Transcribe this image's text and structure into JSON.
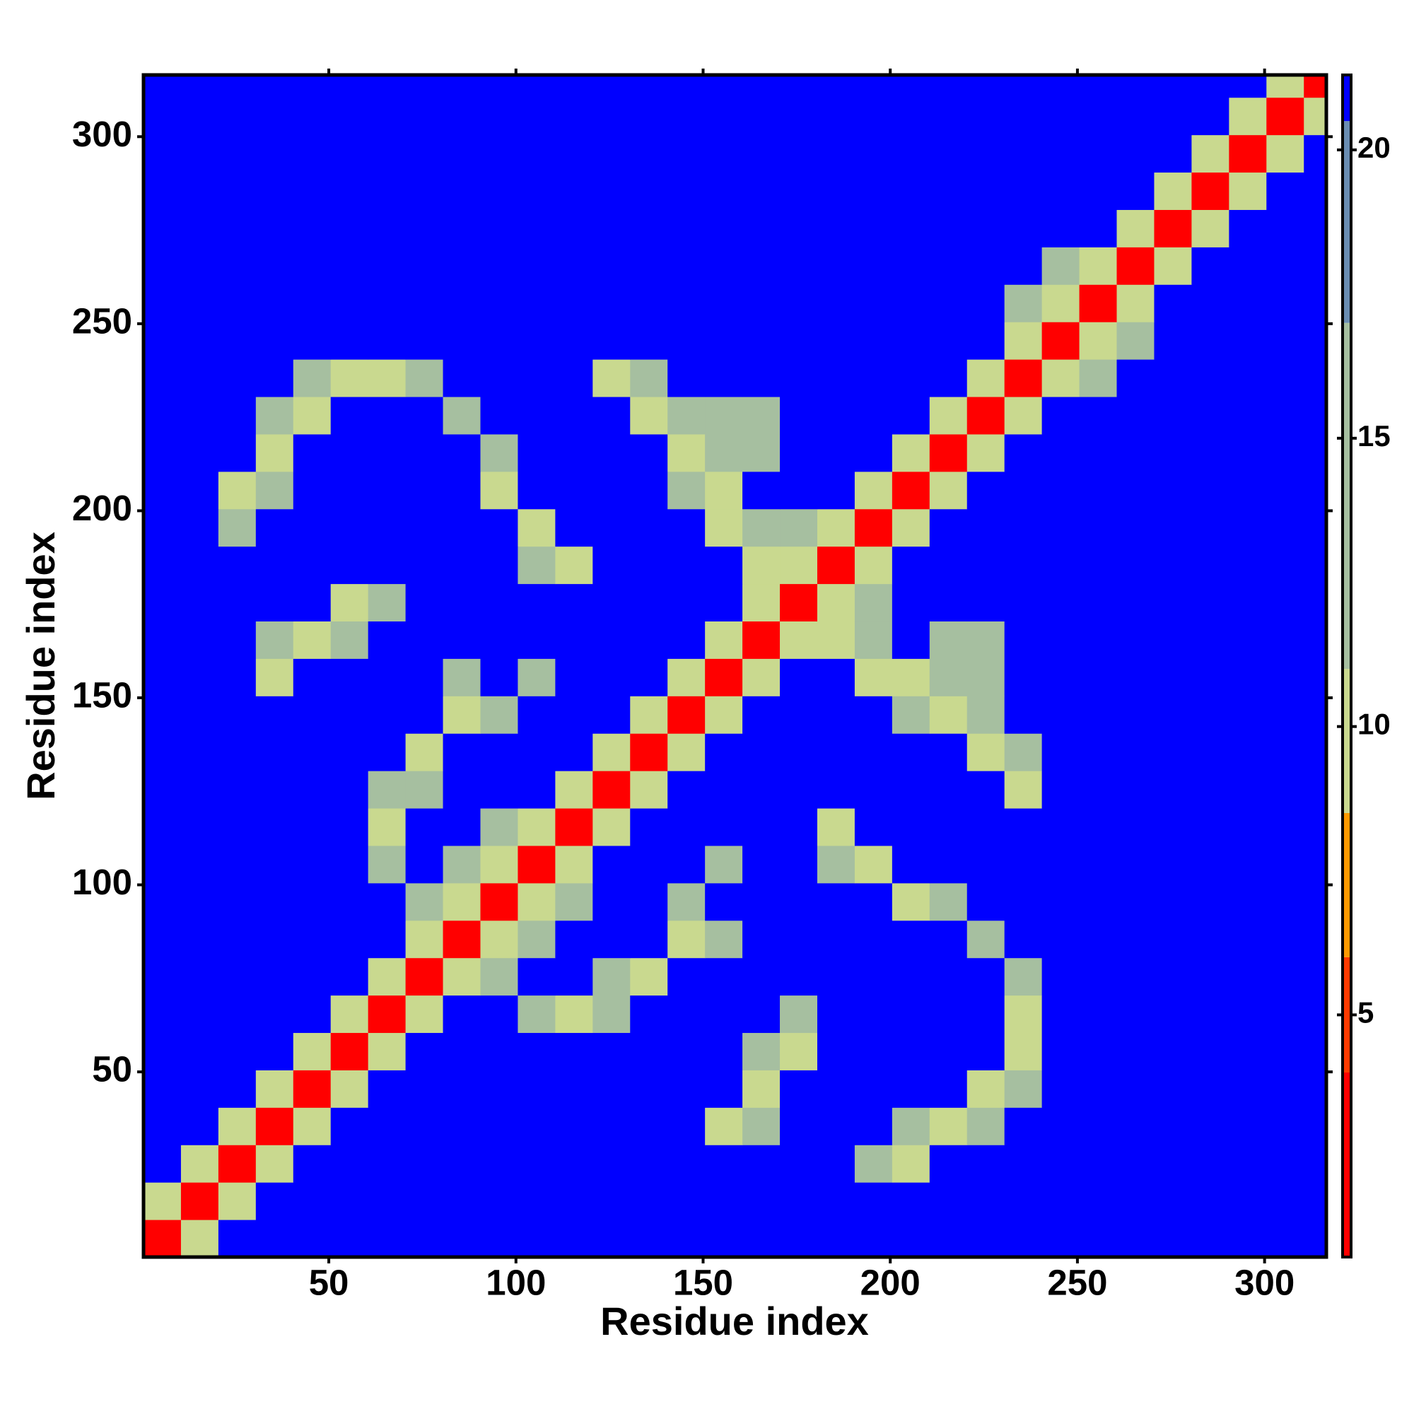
{
  "chart_data": {
    "type": "heatmap",
    "xlabel": "Residue index",
    "ylabel": "Residue index",
    "xlim": [
      0.5,
      316.5
    ],
    "ylim": [
      0.5,
      316.5
    ],
    "xticks": [
      50,
      100,
      150,
      200,
      250,
      300
    ],
    "yticks": [
      50,
      100,
      150,
      200,
      250,
      300
    ],
    "xbins": [
      0.5,
      10.5,
      20.5,
      30.5,
      40.5,
      50.5,
      60.5,
      70.5,
      80.5,
      90.5,
      100.5,
      110.5,
      120.5,
      130.5,
      140.5,
      150.5,
      160.5,
      170.5,
      180.5,
      190.5,
      200.5,
      210.5,
      220.5,
      230.5,
      240.5,
      250.5,
      260.5,
      270.5,
      280.5,
      290.5,
      300.5,
      310.5,
      316.5
    ],
    "ybins": [
      0.5,
      10.5,
      20.5,
      30.5,
      40.5,
      50.5,
      60.5,
      70.5,
      80.5,
      90.5,
      100.5,
      110.5,
      120.5,
      130.5,
      140.5,
      150.5,
      160.5,
      170.5,
      180.5,
      190.5,
      200.5,
      210.5,
      220.5,
      230.5,
      240.5,
      250.5,
      260.5,
      270.5,
      280.5,
      290.5,
      300.5,
      310.5,
      316.5
    ],
    "colorbar": {
      "lim": [
        0.8,
        21.3
      ],
      "ticks": [
        5,
        10,
        15,
        20
      ]
    },
    "colorscale": [
      {
        "value": 0.8,
        "color": "#ff0000"
      },
      {
        "value": 4,
        "color": "#ff3a00"
      },
      {
        "value": 6,
        "color": "#ff9a00"
      },
      {
        "value": 8.5,
        "color": "#c9d98f"
      },
      {
        "value": 11,
        "color": "#a6bfa0"
      },
      {
        "value": 17,
        "color": "#6a8db2"
      },
      {
        "value": 20.5,
        "color": "#0000ff"
      }
    ],
    "z": [
      [
        3,
        10,
        21,
        21,
        21,
        21,
        21,
        21,
        21,
        21,
        21,
        21,
        21,
        21,
        21,
        21,
        21,
        21,
        21,
        21,
        21,
        21,
        21,
        21,
        21,
        21,
        21,
        21,
        21,
        21,
        21,
        21
      ],
      [
        10,
        3,
        10,
        21,
        21,
        21,
        21,
        21,
        21,
        21,
        21,
        21,
        21,
        21,
        21,
        21,
        21,
        21,
        21,
        21,
        21,
        21,
        21,
        21,
        21,
        21,
        21,
        21,
        21,
        21,
        21,
        21
      ],
      [
        21,
        10,
        3,
        10,
        21,
        21,
        21,
        21,
        21,
        21,
        21,
        21,
        21,
        21,
        21,
        21,
        21,
        21,
        21,
        13,
        10,
        21,
        21,
        21,
        21,
        21,
        21,
        21,
        21,
        21,
        21,
        21
      ],
      [
        21,
        21,
        10,
        3,
        10,
        21,
        21,
        21,
        21,
        21,
        21,
        21,
        21,
        21,
        21,
        10,
        13,
        21,
        21,
        21,
        13,
        10,
        11,
        21,
        21,
        21,
        21,
        21,
        21,
        21,
        21,
        21
      ],
      [
        21,
        21,
        21,
        10,
        3,
        10,
        21,
        21,
        21,
        21,
        21,
        21,
        21,
        21,
        21,
        21,
        10,
        21,
        21,
        21,
        21,
        21,
        10,
        13,
        21,
        21,
        21,
        21,
        21,
        21,
        21,
        21
      ],
      [
        21,
        21,
        21,
        21,
        10,
        3,
        10,
        21,
        21,
        21,
        21,
        21,
        21,
        21,
        21,
        21,
        11,
        10,
        21,
        21,
        21,
        21,
        21,
        10,
        21,
        21,
        21,
        21,
        21,
        21,
        21,
        21
      ],
      [
        21,
        21,
        21,
        21,
        21,
        10,
        3,
        10,
        21,
        21,
        11,
        10,
        11,
        21,
        21,
        21,
        21,
        11,
        21,
        21,
        21,
        21,
        21,
        10,
        21,
        21,
        21,
        21,
        21,
        21,
        21,
        21
      ],
      [
        21,
        21,
        21,
        21,
        21,
        21,
        10,
        3,
        10,
        12,
        21,
        21,
        12,
        10,
        21,
        21,
        21,
        21,
        21,
        21,
        21,
        21,
        21,
        12,
        21,
        21,
        21,
        21,
        21,
        21,
        21,
        21
      ],
      [
        21,
        21,
        21,
        21,
        21,
        21,
        21,
        10,
        3,
        10,
        11,
        21,
        21,
        21,
        10,
        12,
        21,
        21,
        21,
        21,
        21,
        21,
        12,
        21,
        21,
        21,
        21,
        21,
        21,
        21,
        21,
        21
      ],
      [
        21,
        21,
        21,
        21,
        21,
        21,
        21,
        12,
        10,
        3,
        10,
        12,
        21,
        21,
        11,
        21,
        21,
        21,
        21,
        21,
        10,
        12,
        21,
        21,
        21,
        21,
        21,
        21,
        21,
        21,
        21,
        21
      ],
      [
        21,
        21,
        21,
        21,
        21,
        21,
        11,
        21,
        11,
        10,
        3,
        10,
        21,
        21,
        21,
        12,
        21,
        21,
        11,
        10,
        21,
        21,
        21,
        21,
        21,
        21,
        21,
        21,
        21,
        21,
        21,
        21
      ],
      [
        21,
        21,
        21,
        21,
        21,
        21,
        10,
        21,
        21,
        12,
        10,
        3,
        10,
        21,
        21,
        21,
        21,
        21,
        10,
        21,
        21,
        21,
        21,
        21,
        21,
        21,
        21,
        21,
        21,
        21,
        21,
        21
      ],
      [
        21,
        21,
        21,
        21,
        21,
        21,
        11,
        12,
        21,
        21,
        21,
        10,
        3,
        10,
        21,
        21,
        21,
        21,
        21,
        21,
        21,
        21,
        21,
        10,
        21,
        21,
        21,
        21,
        21,
        21,
        21,
        21
      ],
      [
        21,
        21,
        21,
        21,
        21,
        21,
        21,
        10,
        21,
        21,
        21,
        21,
        10,
        3,
        10,
        21,
        21,
        21,
        21,
        21,
        21,
        21,
        10,
        12,
        21,
        21,
        21,
        21,
        21,
        21,
        21,
        21
      ],
      [
        21,
        21,
        21,
        21,
        21,
        21,
        21,
        21,
        10,
        11,
        21,
        21,
        21,
        10,
        3,
        10,
        21,
        21,
        21,
        21,
        12,
        10,
        11,
        21,
        21,
        21,
        21,
        21,
        21,
        21,
        21,
        21
      ],
      [
        21,
        21,
        21,
        10,
        21,
        21,
        21,
        21,
        12,
        21,
        12,
        21,
        21,
        21,
        10,
        3,
        10,
        21,
        21,
        10,
        10,
        11,
        13,
        21,
        21,
        21,
        21,
        21,
        21,
        21,
        21,
        21
      ],
      [
        21,
        21,
        21,
        13,
        10,
        11,
        21,
        21,
        21,
        21,
        21,
        21,
        21,
        21,
        21,
        10,
        3,
        10,
        10,
        11,
        21,
        13,
        13,
        21,
        21,
        21,
        21,
        21,
        21,
        21,
        21,
        21
      ],
      [
        21,
        21,
        21,
        21,
        21,
        10,
        11,
        21,
        21,
        21,
        21,
        21,
        21,
        21,
        21,
        21,
        10,
        3,
        10,
        11,
        21,
        21,
        21,
        21,
        21,
        21,
        21,
        21,
        21,
        21,
        21,
        21
      ],
      [
        21,
        21,
        21,
        21,
        21,
        21,
        21,
        21,
        21,
        21,
        11,
        10,
        21,
        21,
        21,
        21,
        10,
        10,
        3,
        10,
        21,
        21,
        21,
        21,
        21,
        21,
        21,
        21,
        21,
        21,
        21,
        21
      ],
      [
        21,
        21,
        13,
        21,
        21,
        21,
        21,
        21,
        21,
        21,
        10,
        21,
        21,
        21,
        21,
        10,
        11,
        11,
        10,
        3,
        10,
        21,
        21,
        21,
        21,
        21,
        21,
        21,
        21,
        21,
        21,
        21
      ],
      [
        21,
        21,
        10,
        13,
        21,
        21,
        21,
        21,
        21,
        10,
        21,
        21,
        21,
        21,
        12,
        10,
        21,
        21,
        21,
        10,
        3,
        10,
        21,
        21,
        21,
        21,
        21,
        21,
        21,
        21,
        21,
        21
      ],
      [
        21,
        21,
        21,
        10,
        21,
        21,
        21,
        21,
        21,
        12,
        21,
        21,
        21,
        21,
        10,
        11,
        13,
        21,
        21,
        21,
        10,
        3,
        10,
        21,
        21,
        21,
        21,
        21,
        21,
        21,
        21,
        21
      ],
      [
        21,
        21,
        21,
        11,
        10,
        21,
        21,
        21,
        12,
        21,
        21,
        21,
        21,
        10,
        11,
        13,
        13,
        21,
        21,
        21,
        21,
        10,
        3,
        10,
        21,
        21,
        21,
        21,
        21,
        21,
        21,
        21
      ],
      [
        21,
        21,
        21,
        21,
        13,
        10,
        10,
        12,
        21,
        21,
        21,
        21,
        10,
        12,
        21,
        21,
        21,
        21,
        21,
        21,
        21,
        21,
        10,
        3,
        10,
        13,
        21,
        21,
        21,
        21,
        21,
        21
      ],
      [
        21,
        21,
        21,
        21,
        21,
        21,
        21,
        21,
        21,
        21,
        21,
        21,
        21,
        21,
        21,
        21,
        21,
        21,
        21,
        21,
        21,
        21,
        21,
        10,
        3,
        10,
        12,
        21,
        21,
        21,
        21,
        21
      ],
      [
        21,
        21,
        21,
        21,
        21,
        21,
        21,
        21,
        21,
        21,
        21,
        21,
        21,
        21,
        21,
        21,
        21,
        21,
        21,
        21,
        21,
        21,
        21,
        13,
        10,
        3,
        10,
        21,
        21,
        21,
        21,
        21
      ],
      [
        21,
        21,
        21,
        21,
        21,
        21,
        21,
        21,
        21,
        21,
        21,
        21,
        21,
        21,
        21,
        21,
        21,
        21,
        21,
        21,
        21,
        21,
        21,
        21,
        12,
        10,
        3,
        10,
        21,
        21,
        21,
        21
      ],
      [
        21,
        21,
        21,
        21,
        21,
        21,
        21,
        21,
        21,
        21,
        21,
        21,
        21,
        21,
        21,
        21,
        21,
        21,
        21,
        21,
        21,
        21,
        21,
        21,
        21,
        21,
        10,
        3,
        10,
        21,
        21,
        21
      ],
      [
        21,
        21,
        21,
        21,
        21,
        21,
        21,
        21,
        21,
        21,
        21,
        21,
        21,
        21,
        21,
        21,
        21,
        21,
        21,
        21,
        21,
        21,
        21,
        21,
        21,
        21,
        21,
        10,
        3,
        10,
        21,
        21
      ],
      [
        21,
        21,
        21,
        21,
        21,
        21,
        21,
        21,
        21,
        21,
        21,
        21,
        21,
        21,
        21,
        21,
        21,
        21,
        21,
        21,
        21,
        21,
        21,
        21,
        21,
        21,
        21,
        21,
        10,
        3,
        10,
        21
      ],
      [
        21,
        21,
        21,
        21,
        21,
        21,
        21,
        21,
        21,
        21,
        21,
        21,
        21,
        21,
        21,
        21,
        21,
        21,
        21,
        21,
        21,
        21,
        21,
        21,
        21,
        21,
        21,
        21,
        21,
        10,
        3,
        10
      ],
      [
        21,
        21,
        21,
        21,
        21,
        21,
        21,
        21,
        21,
        21,
        21,
        21,
        21,
        21,
        21,
        21,
        21,
        21,
        21,
        21,
        21,
        21,
        21,
        21,
        21,
        21,
        21,
        21,
        21,
        21,
        10,
        3
      ]
    ]
  }
}
